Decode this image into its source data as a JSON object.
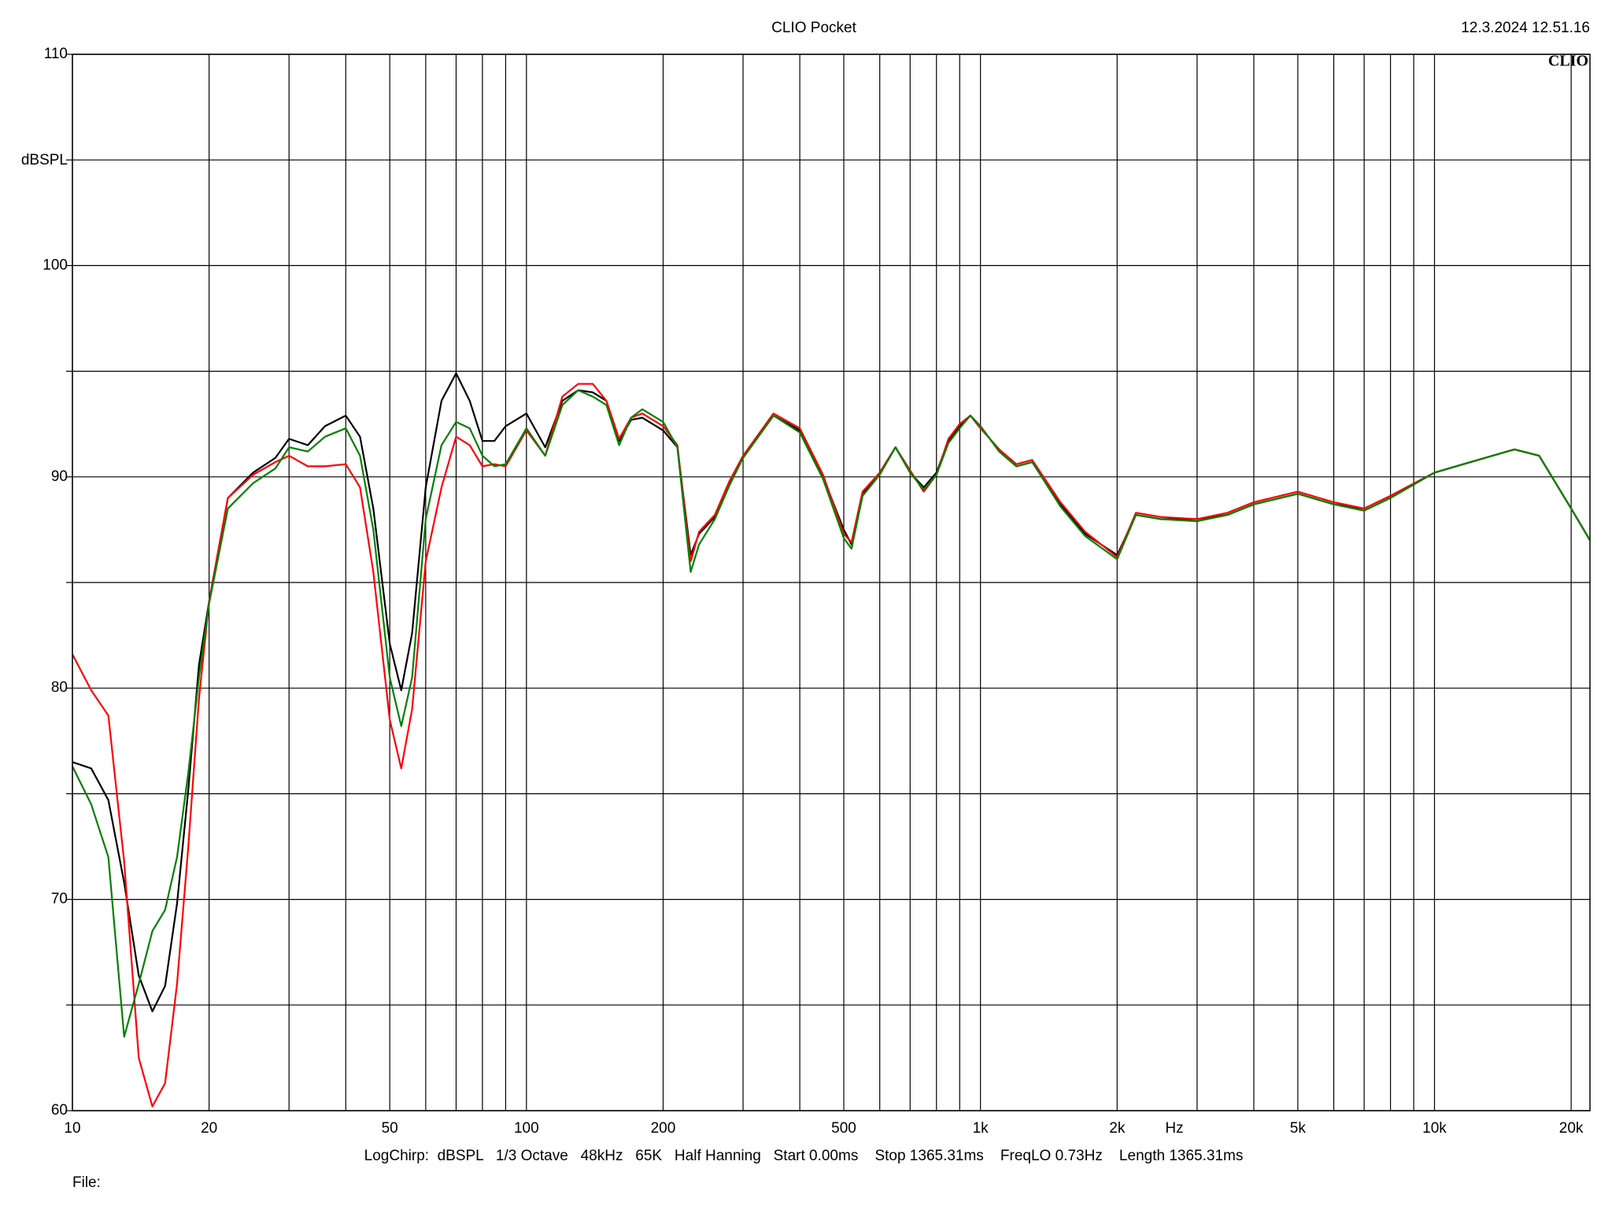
{
  "chart_data": {
    "type": "line",
    "title": "CLIO Pocket",
    "timestamp": "12.3.2024 12.51.16",
    "logo": "CLIO",
    "ylabel": "dBSPL",
    "xlabel": "Hz",
    "footer": "LogChirp:  dBSPL   1/3 Octave   48kHz   65K   Half Hanning   Start 0.00ms    Stop 1365.31ms    FreqLO 0.73Hz    Length 1365.31ms",
    "file_label": "File:",
    "xscale": "log",
    "grid": true,
    "xlim": [
      10,
      22000
    ],
    "ylim": [
      60,
      110
    ],
    "xticks": [
      10,
      20,
      50,
      100,
      200,
      500,
      {
        "value": 1000,
        "label": "1k"
      },
      {
        "value": 2000,
        "label": "2k"
      },
      {
        "value": 5000,
        "label": "5k"
      },
      {
        "value": 10000,
        "label": "10k"
      },
      {
        "value": 20000,
        "label": "20k"
      }
    ],
    "xminor": [
      30,
      40,
      60,
      70,
      80,
      90,
      300,
      400,
      600,
      700,
      800,
      900,
      3000,
      4000,
      6000,
      7000,
      8000,
      9000
    ],
    "yticks": [
      60,
      70,
      80,
      90,
      100,
      110
    ],
    "yminor": [
      65,
      75,
      85,
      95,
      105
    ],
    "x": [
      10,
      11,
      12,
      13,
      14,
      15,
      16,
      17,
      18,
      19,
      20,
      22,
      25,
      28,
      30,
      33,
      36,
      40,
      43,
      46,
      50,
      53,
      56,
      60,
      65,
      70,
      75,
      80,
      85,
      90,
      100,
      110,
      120,
      130,
      140,
      150,
      160,
      170,
      180,
      200,
      215,
      230,
      240,
      260,
      280,
      300,
      350,
      400,
      450,
      500,
      520,
      550,
      600,
      650,
      700,
      750,
      800,
      850,
      900,
      950,
      1000,
      1100,
      1200,
      1300,
      1500,
      1700,
      2000,
      2200,
      2500,
      3000,
      3500,
      4000,
      5000,
      6000,
      7000,
      8000,
      10000,
      12000,
      15000,
      17000,
      20000,
      22000
    ],
    "series": [
      {
        "color": "#000000",
        "values": [
          76.5,
          76.2,
          74.7,
          70.8,
          66.4,
          64.7,
          65.9,
          69.8,
          75.2,
          81.1,
          84.1,
          89.0,
          90.2,
          90.9,
          91.8,
          91.5,
          92.4,
          92.9,
          91.9,
          88.5,
          82.1,
          79.9,
          82.6,
          89.5,
          93.6,
          94.9,
          93.6,
          91.7,
          91.7,
          92.4,
          93.0,
          91.4,
          93.6,
          94.1,
          94.0,
          93.6,
          91.7,
          92.7,
          92.8,
          92.2,
          91.4,
          86.3,
          87.3,
          88.1,
          89.7,
          90.9,
          92.9,
          92.2,
          90.0,
          87.5,
          86.8,
          89.2,
          90.2,
          91.4,
          90.2,
          89.5,
          90.2,
          91.7,
          92.4,
          92.9,
          92.4,
          91.2,
          90.5,
          90.7,
          88.7,
          87.3,
          86.3,
          88.2,
          88.0,
          88.0,
          88.2,
          88.7,
          89.2,
          88.7,
          88.5,
          89.1,
          90.2,
          90.7,
          91.3,
          91.0,
          88.5,
          87.0
        ]
      },
      {
        "color": "#ff0000",
        "values": [
          81.6,
          79.9,
          78.7,
          71.8,
          62.5,
          60.2,
          61.3,
          66.0,
          72.5,
          79.5,
          84.1,
          89.0,
          90.1,
          90.7,
          91.0,
          90.5,
          90.5,
          90.6,
          89.5,
          85.5,
          78.5,
          76.2,
          79.0,
          86.0,
          89.5,
          91.9,
          91.5,
          90.5,
          90.6,
          90.5,
          92.2,
          91.0,
          93.8,
          94.4,
          94.4,
          93.6,
          91.8,
          92.8,
          93.0,
          92.4,
          91.5,
          86.0,
          87.4,
          88.2,
          89.8,
          91.0,
          93.0,
          92.3,
          90.1,
          87.3,
          86.9,
          89.3,
          90.2,
          91.4,
          90.3,
          89.3,
          90.1,
          91.8,
          92.5,
          92.9,
          92.3,
          91.3,
          90.6,
          90.8,
          88.8,
          87.4,
          86.2,
          88.3,
          88.1,
          88.0,
          88.3,
          88.8,
          89.3,
          88.8,
          88.5,
          89.1,
          90.2,
          90.7,
          91.3,
          91.0,
          88.5,
          87.0
        ]
      },
      {
        "color": "#008000",
        "values": [
          76.3,
          74.5,
          72.0,
          63.5,
          66.0,
          68.5,
          69.5,
          72.0,
          76.0,
          80.5,
          84.0,
          88.5,
          89.7,
          90.4,
          91.4,
          91.2,
          91.9,
          92.3,
          91.0,
          87.5,
          80.5,
          78.2,
          80.5,
          88.0,
          91.5,
          92.6,
          92.3,
          91.0,
          90.5,
          90.6,
          92.3,
          91.0,
          93.4,
          94.1,
          93.8,
          93.4,
          91.5,
          92.8,
          93.2,
          92.6,
          91.4,
          85.5,
          86.8,
          88.0,
          89.6,
          90.9,
          92.9,
          92.1,
          89.9,
          87.1,
          86.6,
          89.1,
          90.1,
          91.4,
          90.2,
          89.4,
          90.1,
          91.6,
          92.3,
          92.9,
          92.4,
          91.2,
          90.5,
          90.7,
          88.6,
          87.2,
          86.1,
          88.2,
          88.0,
          87.9,
          88.2,
          88.7,
          89.2,
          88.7,
          88.4,
          89.0,
          90.2,
          90.7,
          91.3,
          91.0,
          88.5,
          87.0
        ]
      }
    ]
  }
}
